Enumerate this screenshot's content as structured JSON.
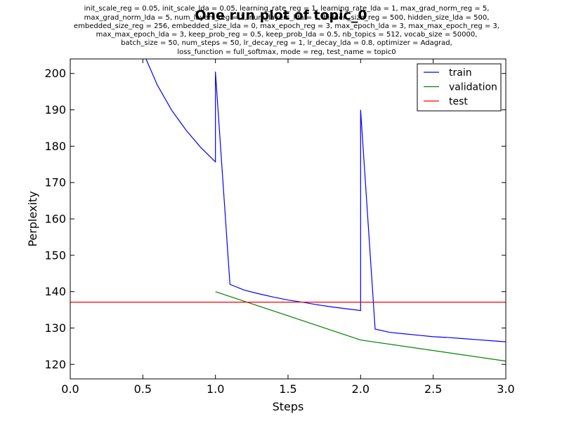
{
  "chart_data": {
    "type": "line",
    "title": "One run plot of topic_0",
    "config_lines": [
      "init_scale_reg = 0.05, init_scale_lda = 0.05, learning_rate_reg = 1, learning_rate_lda = 1, max_grad_norm_reg = 5,",
      "max_grad_norm_lda = 5, num_layers_reg = 1, num_layers_lda = 1, hidden_size_reg = 500, hidden_size_lda = 500,",
      "embedded_size_reg = 256, embedded_size_lda = 0, max_epoch_reg = 3, max_epoch_lda = 3, max_max_epoch_reg = 3,",
      "max_max_epoch_lda = 3, keep_prob_reg = 0.5, keep_prob_lda = 0.5, nb_topics = 512, vocab_size = 50000,",
      "batch_size = 50, num_steps = 50, lr_decay_reg = 1, lr_decay_lda = 0.8, optimizer = Adagrad,",
      "loss_function = full_softmax, mode = reg, test_name = topic0"
    ],
    "xlabel": "Steps",
    "ylabel": "Perplexity",
    "xlim": [
      0.0,
      3.0
    ],
    "ylim": [
      116,
      204
    ],
    "xticks": [
      "0.0",
      "0.5",
      "1.0",
      "1.5",
      "2.0",
      "2.5",
      "3.0"
    ],
    "yticks": [
      "120",
      "130",
      "140",
      "150",
      "160",
      "170",
      "180",
      "190",
      "200"
    ],
    "grid": false,
    "legend_position": "top-right",
    "series": [
      {
        "name": "train",
        "color": "#0000ff",
        "x": [
          0.5,
          0.6,
          0.7,
          0.8,
          0.9,
          1.0,
          1.0,
          1.1,
          1.2,
          1.3,
          1.4,
          1.5,
          1.6,
          1.7,
          1.8,
          1.9,
          2.0,
          2.0,
          2.1,
          2.2,
          2.3,
          2.4,
          2.5,
          2.6,
          2.7,
          2.8,
          2.9,
          3.0
        ],
        "y": [
          206,
          196.8,
          189.8,
          184.3,
          179.6,
          175.7,
          200.5,
          142.0,
          140.4,
          139.4,
          138.5,
          137.7,
          137.1,
          136.4,
          135.8,
          135.3,
          134.8,
          190.0,
          129.7,
          128.8,
          128.4,
          128.0,
          127.6,
          127.4,
          127.1,
          126.8,
          126.5,
          126.2
        ]
      },
      {
        "name": "validation",
        "color": "#008000",
        "x": [
          1.0,
          2.0,
          3.0
        ],
        "y": [
          140.0,
          126.7,
          120.9
        ]
      },
      {
        "name": "test",
        "color": "#ff0000",
        "x": [
          0.0,
          3.0
        ],
        "y": [
          137.1,
          137.1
        ]
      }
    ]
  }
}
